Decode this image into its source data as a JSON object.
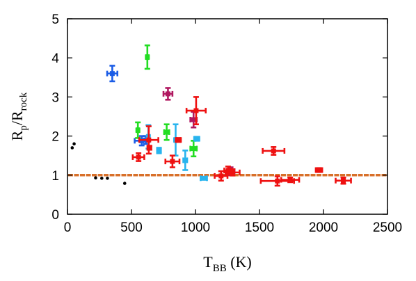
{
  "chart_data": {
    "type": "scatter",
    "title": "",
    "xlabel": "T",
    "xlabel_sub": "BB",
    "xlabel_unit": " (K)",
    "ylabel": "R",
    "ylabel_sub1": "p",
    "ylabel_mid": "/R",
    "ylabel_sub2": "rock",
    "xlim": [
      0,
      2500
    ],
    "ylim": [
      0,
      5
    ],
    "xticks": [
      "0",
      "500",
      "1000",
      "1500",
      "2000",
      "2500"
    ],
    "yticks": [
      "0",
      "1",
      "2",
      "3",
      "4",
      "5"
    ],
    "grid": false,
    "legend": "none",
    "reference_line": {
      "y": 1.0,
      "color": "#d8702a",
      "style": "dashed"
    },
    "series": [
      {
        "color": "#000000",
        "marker": "dot",
        "points": [
          {
            "x": 37,
            "y": 1.7
          },
          {
            "x": 52,
            "y": 1.8
          },
          {
            "x": 220,
            "y": 0.93
          },
          {
            "x": 268,
            "y": 0.92
          },
          {
            "x": 312,
            "y": 0.92
          },
          {
            "x": 447,
            "y": 0.79
          }
        ]
      },
      {
        "color": "#1a5ce6",
        "marker": "cross",
        "points": [
          {
            "x": 350,
            "y": 3.6,
            "xerr": 40,
            "yerr": 0.2
          },
          {
            "x": 580,
            "y": 1.88,
            "xerr": 55,
            "yerr": 0.12
          },
          {
            "x": 612,
            "y": 1.9,
            "xerr": 30,
            "yerr": 0.1
          }
        ]
      },
      {
        "color": "#22dd22",
        "marker": "cross",
        "points": [
          {
            "x": 624,
            "y": 4.02,
            "xerr": 10,
            "yerr": 0.3
          },
          {
            "x": 550,
            "y": 2.15,
            "xerr": 10,
            "yerr": 0.2
          },
          {
            "x": 775,
            "y": 2.1,
            "xerr": 20,
            "yerr": 0.2
          },
          {
            "x": 985,
            "y": 1.68,
            "xerr": 25,
            "yerr": 0.2
          }
        ]
      },
      {
        "color": "#28b4ee",
        "marker": "cross",
        "points": [
          {
            "x": 632,
            "y": 1.98,
            "xerr": 10,
            "yerr": 0.3
          },
          {
            "x": 715,
            "y": 1.63,
            "xerr": 15,
            "yerr": 0.07
          },
          {
            "x": 845,
            "y": 1.9,
            "xerr": 10,
            "yerr": 0.4
          },
          {
            "x": 920,
            "y": 1.38,
            "xerr": 15,
            "yerr": 0.25
          },
          {
            "x": 1010,
            "y": 1.93,
            "xerr": 20,
            "yerr": 0.05
          },
          {
            "x": 1065,
            "y": 0.92,
            "xerr": 25,
            "yerr": 0.03
          }
        ]
      },
      {
        "color": "#b01860",
        "marker": "cross",
        "points": [
          {
            "x": 785,
            "y": 3.08,
            "xerr": 35,
            "yerr": 0.15
          },
          {
            "x": 985,
            "y": 2.42,
            "xerr": 25,
            "yerr": 0.2
          },
          {
            "x": 1275,
            "y": 1.1,
            "xerr": 30,
            "yerr": 0.1
          }
        ]
      },
      {
        "color": "#ee1111",
        "marker": "cross",
        "points": [
          {
            "x": 555,
            "y": 1.46,
            "xerr": 45,
            "yerr": 0.1
          },
          {
            "x": 635,
            "y": 1.9,
            "xerr": 75,
            "yerr": 0.35
          },
          {
            "x": 640,
            "y": 1.7,
            "xerr": 15,
            "yerr": 0.05
          },
          {
            "x": 820,
            "y": 1.35,
            "xerr": 55,
            "yerr": 0.15
          },
          {
            "x": 866,
            "y": 1.9,
            "xerr": 20,
            "yerr": 0.05
          },
          {
            "x": 1005,
            "y": 2.65,
            "xerr": 75,
            "yerr": 0.35
          },
          {
            "x": 1200,
            "y": 0.98,
            "xerr": 50,
            "yerr": 0.12
          },
          {
            "x": 1255,
            "y": 1.12,
            "xerr": 30,
            "yerr": 0.1
          },
          {
            "x": 1290,
            "y": 1.07,
            "xerr": 55,
            "yerr": 0.08
          },
          {
            "x": 1610,
            "y": 1.62,
            "xerr": 85,
            "yerr": 0.1
          },
          {
            "x": 1640,
            "y": 0.85,
            "xerr": 130,
            "yerr": 0.12
          },
          {
            "x": 1740,
            "y": 0.88,
            "xerr": 70,
            "yerr": 0.06
          },
          {
            "x": 1965,
            "y": 1.13,
            "xerr": 25,
            "yerr": 0.05
          },
          {
            "x": 2155,
            "y": 0.86,
            "xerr": 60,
            "yerr": 0.08
          }
        ]
      }
    ]
  }
}
